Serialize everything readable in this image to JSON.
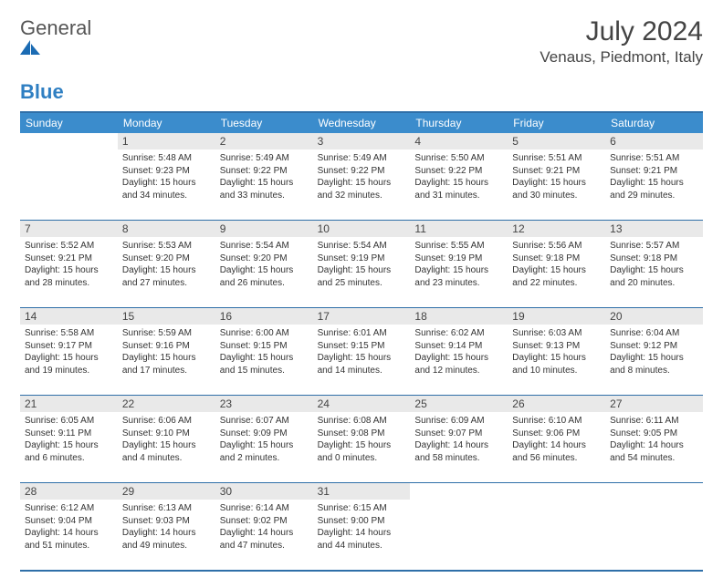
{
  "logo": {
    "text_general": "General",
    "text_blue": "Blue"
  },
  "title": "July 2024",
  "location": "Venaus, Piedmont, Italy",
  "colors": {
    "header_bg": "#3b8ccc",
    "header_text": "#ffffff",
    "border": "#2f6fa8",
    "daynum_bg": "#e9e9e9",
    "text": "#333333"
  },
  "day_headers": [
    "Sunday",
    "Monday",
    "Tuesday",
    "Wednesday",
    "Thursday",
    "Friday",
    "Saturday"
  ],
  "labels": {
    "sunrise": "Sunrise:",
    "sunset": "Sunset:",
    "daylight": "Daylight:"
  },
  "weeks": [
    [
      null,
      {
        "n": 1,
        "sr": "5:48 AM",
        "ss": "9:23 PM",
        "dl": "15 hours and 34 minutes."
      },
      {
        "n": 2,
        "sr": "5:49 AM",
        "ss": "9:22 PM",
        "dl": "15 hours and 33 minutes."
      },
      {
        "n": 3,
        "sr": "5:49 AM",
        "ss": "9:22 PM",
        "dl": "15 hours and 32 minutes."
      },
      {
        "n": 4,
        "sr": "5:50 AM",
        "ss": "9:22 PM",
        "dl": "15 hours and 31 minutes."
      },
      {
        "n": 5,
        "sr": "5:51 AM",
        "ss": "9:21 PM",
        "dl": "15 hours and 30 minutes."
      },
      {
        "n": 6,
        "sr": "5:51 AM",
        "ss": "9:21 PM",
        "dl": "15 hours and 29 minutes."
      }
    ],
    [
      {
        "n": 7,
        "sr": "5:52 AM",
        "ss": "9:21 PM",
        "dl": "15 hours and 28 minutes."
      },
      {
        "n": 8,
        "sr": "5:53 AM",
        "ss": "9:20 PM",
        "dl": "15 hours and 27 minutes."
      },
      {
        "n": 9,
        "sr": "5:54 AM",
        "ss": "9:20 PM",
        "dl": "15 hours and 26 minutes."
      },
      {
        "n": 10,
        "sr": "5:54 AM",
        "ss": "9:19 PM",
        "dl": "15 hours and 25 minutes."
      },
      {
        "n": 11,
        "sr": "5:55 AM",
        "ss": "9:19 PM",
        "dl": "15 hours and 23 minutes."
      },
      {
        "n": 12,
        "sr": "5:56 AM",
        "ss": "9:18 PM",
        "dl": "15 hours and 22 minutes."
      },
      {
        "n": 13,
        "sr": "5:57 AM",
        "ss": "9:18 PM",
        "dl": "15 hours and 20 minutes."
      }
    ],
    [
      {
        "n": 14,
        "sr": "5:58 AM",
        "ss": "9:17 PM",
        "dl": "15 hours and 19 minutes."
      },
      {
        "n": 15,
        "sr": "5:59 AM",
        "ss": "9:16 PM",
        "dl": "15 hours and 17 minutes."
      },
      {
        "n": 16,
        "sr": "6:00 AM",
        "ss": "9:15 PM",
        "dl": "15 hours and 15 minutes."
      },
      {
        "n": 17,
        "sr": "6:01 AM",
        "ss": "9:15 PM",
        "dl": "15 hours and 14 minutes."
      },
      {
        "n": 18,
        "sr": "6:02 AM",
        "ss": "9:14 PM",
        "dl": "15 hours and 12 minutes."
      },
      {
        "n": 19,
        "sr": "6:03 AM",
        "ss": "9:13 PM",
        "dl": "15 hours and 10 minutes."
      },
      {
        "n": 20,
        "sr": "6:04 AM",
        "ss": "9:12 PM",
        "dl": "15 hours and 8 minutes."
      }
    ],
    [
      {
        "n": 21,
        "sr": "6:05 AM",
        "ss": "9:11 PM",
        "dl": "15 hours and 6 minutes."
      },
      {
        "n": 22,
        "sr": "6:06 AM",
        "ss": "9:10 PM",
        "dl": "15 hours and 4 minutes."
      },
      {
        "n": 23,
        "sr": "6:07 AM",
        "ss": "9:09 PM",
        "dl": "15 hours and 2 minutes."
      },
      {
        "n": 24,
        "sr": "6:08 AM",
        "ss": "9:08 PM",
        "dl": "15 hours and 0 minutes."
      },
      {
        "n": 25,
        "sr": "6:09 AM",
        "ss": "9:07 PM",
        "dl": "14 hours and 58 minutes."
      },
      {
        "n": 26,
        "sr": "6:10 AM",
        "ss": "9:06 PM",
        "dl": "14 hours and 56 minutes."
      },
      {
        "n": 27,
        "sr": "6:11 AM",
        "ss": "9:05 PM",
        "dl": "14 hours and 54 minutes."
      }
    ],
    [
      {
        "n": 28,
        "sr": "6:12 AM",
        "ss": "9:04 PM",
        "dl": "14 hours and 51 minutes."
      },
      {
        "n": 29,
        "sr": "6:13 AM",
        "ss": "9:03 PM",
        "dl": "14 hours and 49 minutes."
      },
      {
        "n": 30,
        "sr": "6:14 AM",
        "ss": "9:02 PM",
        "dl": "14 hours and 47 minutes."
      },
      {
        "n": 31,
        "sr": "6:15 AM",
        "ss": "9:00 PM",
        "dl": "14 hours and 44 minutes."
      },
      null,
      null,
      null
    ]
  ]
}
